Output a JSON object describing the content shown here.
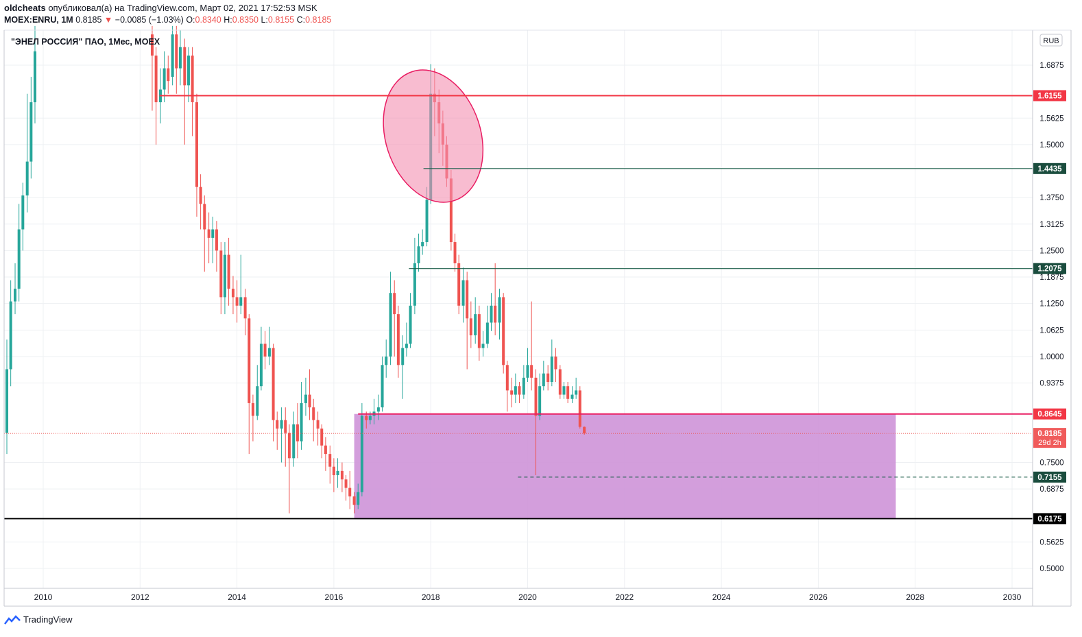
{
  "header": {
    "user": "oldcheats",
    "published": "опубликовал(а) на TradingView.com, Март 02, 2021 17:52:53 MSK",
    "symbol_line": "MOEX:ENRU, 1M",
    "last": "0.8185",
    "change_arrow": "▼",
    "change": "−0.0085 (−1.03%)",
    "o_label": "O:",
    "o_val": "0.8340",
    "h_label": "H:",
    "h_val": "0.8350",
    "l_label": "L:",
    "l_val": "0.8155",
    "c_label": "C:",
    "c_val": "0.8185"
  },
  "legend_title": "\"ЭНЕЛ РОССИЯ\" ПАО, 1Мес, MOEX",
  "currency_badge": "RUB",
  "footer": {
    "brand": "TradingView"
  },
  "colors": {
    "up": "#26a69a",
    "down": "#ef5350",
    "level_red": "#f23645",
    "level_green": "#1b5e4a",
    "zone": "#ce93d8",
    "ellipse": "#f48fb1"
  },
  "chart_data": {
    "type": "candlestick",
    "title": "\"ЭНЕЛ РОССИЯ\" ПАО, 1Мес, MOEX",
    "x_ticks": [
      "2010",
      "2012",
      "2014",
      "2016",
      "2018",
      "2020",
      "2022",
      "2024",
      "2026",
      "2028",
      "2030"
    ],
    "y_ticks": [
      0.5,
      0.5625,
      0.6875,
      0.75,
      0.9375,
      1.0,
      1.0625,
      1.125,
      1.1875,
      1.25,
      1.3125,
      1.375,
      1.5,
      1.5625,
      1.6875
    ],
    "y_tick_labels": [
      "0.5000",
      "0.5625",
      "0.6875",
      "0.7500",
      "0.9375",
      "1.0000",
      "1.0625",
      "1.1250",
      "1.1875",
      "1.2500",
      "1.3125",
      "1.3750",
      "1.5000",
      "1.5625",
      "1.6875"
    ],
    "ylim": [
      0.476,
      1.745
    ],
    "xlim": [
      2009.2,
      2030.45
    ],
    "horizontal_levels": [
      {
        "value": 1.6155,
        "label": "1.6155",
        "color": "red",
        "start": 2012.4
      },
      {
        "value": 1.4435,
        "label": "1.4435",
        "color": "green",
        "start": 2017.85
      },
      {
        "value": 1.2075,
        "label": "1.2075",
        "color": "green",
        "start": 2017.55
      },
      {
        "value": 0.8645,
        "label": "0.8645",
        "color": "magenta",
        "start": 2016.5
      },
      {
        "value": 0.7155,
        "label": "0.7155",
        "color": "dashed",
        "start": 2019.8
      },
      {
        "value": 0.6175,
        "label": "0.6175",
        "color": "black",
        "start": 2009.2
      }
    ],
    "current_price": {
      "value": 0.8185,
      "label": "0.8185",
      "countdown": "29d 2h"
    },
    "zone": {
      "x0": 2016.42,
      "x1": 2027.6,
      "y0": 0.6175,
      "y1": 0.8645
    },
    "ellipse": {
      "cx": 2018.05,
      "cy": 1.52,
      "rx": 0.98,
      "ry": 0.16
    },
    "candles": [
      [
        2009.25,
        0.82,
        0.97,
        1.04,
        0.77
      ],
      [
        2009.33,
        0.97,
        1.13,
        1.18,
        0.93
      ],
      [
        2009.42,
        1.13,
        1.16,
        1.22,
        1.1
      ],
      [
        2009.5,
        1.16,
        1.3,
        1.36,
        1.13
      ],
      [
        2009.58,
        1.3,
        1.38,
        1.41,
        1.25
      ],
      [
        2009.67,
        1.38,
        1.46,
        1.62,
        1.34
      ],
      [
        2009.75,
        1.46,
        1.6,
        1.66,
        1.42
      ],
      [
        2009.83,
        1.6,
        1.72,
        1.78,
        1.55
      ],
      [
        2012.25,
        1.76,
        1.71,
        1.78,
        1.58
      ],
      [
        2012.33,
        1.71,
        1.6,
        1.73,
        1.5
      ],
      [
        2012.42,
        1.6,
        1.63,
        1.68,
        1.55
      ],
      [
        2012.5,
        1.63,
        1.68,
        1.72,
        1.6
      ],
      [
        2012.58,
        1.68,
        1.65,
        1.71,
        1.62
      ],
      [
        2012.67,
        1.66,
        1.76,
        1.78,
        1.64
      ],
      [
        2012.75,
        1.76,
        1.68,
        1.78,
        1.62
      ],
      [
        2012.83,
        1.68,
        1.73,
        1.77,
        1.64
      ],
      [
        2012.92,
        1.73,
        1.64,
        1.75,
        1.5
      ],
      [
        2013.0,
        1.64,
        1.71,
        1.73,
        1.6
      ],
      [
        2013.08,
        1.71,
        1.6,
        1.73,
        1.52
      ],
      [
        2013.17,
        1.6,
        1.4,
        1.62,
        1.33
      ],
      [
        2013.25,
        1.4,
        1.36,
        1.43,
        1.3
      ],
      [
        2013.33,
        1.36,
        1.3,
        1.38,
        1.2
      ],
      [
        2013.42,
        1.3,
        1.28,
        1.34,
        1.22
      ],
      [
        2013.5,
        1.28,
        1.3,
        1.33,
        1.22
      ],
      [
        2013.58,
        1.3,
        1.25,
        1.32,
        1.2
      ],
      [
        2013.67,
        1.25,
        1.14,
        1.27,
        1.1
      ],
      [
        2013.75,
        1.14,
        1.24,
        1.27,
        1.1
      ],
      [
        2013.83,
        1.24,
        1.16,
        1.28,
        1.12
      ],
      [
        2013.92,
        1.16,
        1.14,
        1.19,
        1.1
      ],
      [
        2014.0,
        1.14,
        1.12,
        1.18,
        1.08
      ],
      [
        2014.08,
        1.12,
        1.14,
        1.24,
        1.1
      ],
      [
        2014.17,
        1.14,
        1.09,
        1.16,
        1.05
      ],
      [
        2014.25,
        1.09,
        0.89,
        1.1,
        0.77
      ],
      [
        2014.33,
        0.89,
        0.86,
        0.91,
        0.8
      ],
      [
        2014.42,
        0.86,
        0.93,
        0.98,
        0.85
      ],
      [
        2014.5,
        0.93,
        1.03,
        1.07,
        0.92
      ],
      [
        2014.58,
        1.03,
        1.0,
        1.06,
        0.97
      ],
      [
        2014.67,
        1.0,
        1.02,
        1.07,
        0.98
      ],
      [
        2014.75,
        1.02,
        0.85,
        1.03,
        0.8
      ],
      [
        2014.83,
        0.85,
        0.83,
        0.87,
        0.78
      ],
      [
        2014.92,
        0.83,
        0.85,
        0.88,
        0.75
      ],
      [
        2015.0,
        0.85,
        0.82,
        0.88,
        0.74
      ],
      [
        2015.08,
        0.82,
        0.76,
        0.84,
        0.63
      ],
      [
        2015.17,
        0.76,
        0.84,
        0.87,
        0.74
      ],
      [
        2015.25,
        0.84,
        0.8,
        0.89,
        0.76
      ],
      [
        2015.33,
        0.8,
        0.89,
        0.94,
        0.78
      ],
      [
        2015.42,
        0.89,
        0.91,
        0.95,
        0.86
      ],
      [
        2015.5,
        0.91,
        0.88,
        0.97,
        0.85
      ],
      [
        2015.58,
        0.88,
        0.85,
        0.9,
        0.8
      ],
      [
        2015.67,
        0.85,
        0.83,
        0.87,
        0.79
      ],
      [
        2015.75,
        0.83,
        0.79,
        0.84,
        0.76
      ],
      [
        2015.83,
        0.79,
        0.77,
        0.81,
        0.73
      ],
      [
        2015.92,
        0.77,
        0.74,
        0.79,
        0.7
      ],
      [
        2016.0,
        0.74,
        0.72,
        0.76,
        0.68
      ],
      [
        2016.08,
        0.72,
        0.73,
        0.76,
        0.69
      ],
      [
        2016.17,
        0.73,
        0.71,
        0.75,
        0.68
      ],
      [
        2016.25,
        0.71,
        0.69,
        0.72,
        0.66
      ],
      [
        2016.33,
        0.69,
        0.67,
        0.73,
        0.64
      ],
      [
        2016.42,
        0.67,
        0.65,
        0.68,
        0.63
      ],
      [
        2016.5,
        0.65,
        0.68,
        0.7,
        0.64
      ],
      [
        2016.58,
        0.68,
        0.86,
        0.89,
        0.67
      ],
      [
        2016.67,
        0.86,
        0.85,
        0.87,
        0.83
      ],
      [
        2016.75,
        0.85,
        0.86,
        0.87,
        0.84
      ],
      [
        2016.83,
        0.86,
        0.87,
        0.9,
        0.84
      ],
      [
        2016.92,
        0.87,
        0.88,
        0.91,
        0.85
      ],
      [
        2017.0,
        0.88,
        0.98,
        1.0,
        0.87
      ],
      [
        2017.08,
        0.98,
        1.0,
        1.04,
        0.95
      ],
      [
        2017.17,
        1.0,
        1.15,
        1.2,
        0.98
      ],
      [
        2017.25,
        1.15,
        1.1,
        1.18,
        1.0
      ],
      [
        2017.33,
        1.1,
        0.98,
        1.12,
        0.95
      ],
      [
        2017.42,
        0.98,
        1.02,
        1.05,
        0.9
      ],
      [
        2017.5,
        1.02,
        1.03,
        1.08,
        1.0
      ],
      [
        2017.58,
        1.03,
        1.12,
        1.15,
        1.02
      ],
      [
        2017.67,
        1.12,
        1.22,
        1.28,
        1.1
      ],
      [
        2017.75,
        1.22,
        1.26,
        1.29,
        1.2
      ],
      [
        2017.83,
        1.26,
        1.27,
        1.3,
        1.24
      ],
      [
        2017.92,
        1.27,
        1.37,
        1.4,
        1.26
      ],
      [
        2018.0,
        1.37,
        1.62,
        1.69,
        1.36
      ],
      [
        2018.08,
        1.62,
        1.6,
        1.68,
        1.52
      ],
      [
        2018.17,
        1.6,
        1.55,
        1.63,
        1.48
      ],
      [
        2018.25,
        1.55,
        1.5,
        1.58,
        1.45
      ],
      [
        2018.33,
        1.5,
        1.42,
        1.52,
        1.4
      ],
      [
        2018.42,
        1.42,
        1.27,
        1.44,
        1.25
      ],
      [
        2018.5,
        1.27,
        1.22,
        1.29,
        1.2
      ],
      [
        2018.58,
        1.22,
        1.12,
        1.24,
        1.1
      ],
      [
        2018.67,
        1.12,
        1.18,
        1.21,
        1.08
      ],
      [
        2018.75,
        1.18,
        1.09,
        1.2,
        0.97
      ],
      [
        2018.83,
        1.09,
        1.05,
        1.13,
        1.02
      ],
      [
        2018.92,
        1.05,
        1.1,
        1.14,
        1.03
      ],
      [
        2019.0,
        1.1,
        1.02,
        1.12,
        0.99
      ],
      [
        2019.08,
        1.02,
        1.03,
        1.06,
        1.0
      ],
      [
        2019.17,
        1.03,
        1.08,
        1.12,
        1.02
      ],
      [
        2019.25,
        1.08,
        1.12,
        1.15,
        1.06
      ],
      [
        2019.33,
        1.12,
        1.08,
        1.22,
        1.05
      ],
      [
        2019.42,
        1.08,
        1.14,
        1.16,
        1.04
      ],
      [
        2019.5,
        1.14,
        0.98,
        1.15,
        0.96
      ],
      [
        2019.58,
        0.98,
        0.92,
        0.99,
        0.87
      ],
      [
        2019.67,
        0.92,
        0.91,
        0.95,
        0.88
      ],
      [
        2019.75,
        0.91,
        0.93,
        0.96,
        0.89
      ],
      [
        2019.83,
        0.93,
        0.91,
        0.94,
        0.89
      ],
      [
        2019.92,
        0.91,
        0.95,
        0.98,
        0.9
      ],
      [
        2020.0,
        0.95,
        0.98,
        1.02,
        0.94
      ],
      [
        2020.08,
        0.98,
        0.95,
        1.13,
        0.92
      ],
      [
        2020.17,
        0.95,
        0.86,
        0.97,
        0.72
      ],
      [
        2020.25,
        0.86,
        0.93,
        0.96,
        0.85
      ],
      [
        2020.33,
        0.93,
        0.96,
        0.99,
        0.92
      ],
      [
        2020.42,
        0.96,
        0.94,
        0.98,
        0.92
      ],
      [
        2020.5,
        0.94,
        1.0,
        1.04,
        0.93
      ],
      [
        2020.58,
        1.0,
        0.97,
        1.02,
        0.94
      ],
      [
        2020.67,
        0.97,
        0.91,
        0.98,
        0.9
      ],
      [
        2020.75,
        0.91,
        0.93,
        0.94,
        0.9
      ],
      [
        2020.83,
        0.93,
        0.9,
        0.94,
        0.89
      ],
      [
        2020.92,
        0.9,
        0.91,
        0.93,
        0.89
      ],
      [
        2021.0,
        0.91,
        0.92,
        0.95,
        0.9
      ],
      [
        2021.08,
        0.92,
        0.834,
        0.93,
        0.83
      ],
      [
        2021.17,
        0.834,
        0.8185,
        0.835,
        0.8155
      ]
    ]
  }
}
